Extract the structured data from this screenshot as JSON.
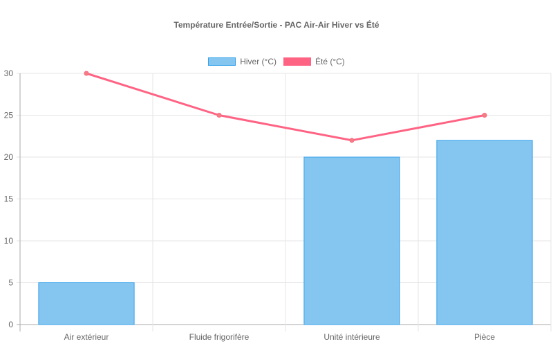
{
  "chart_data": {
    "type": "bar",
    "title": "Température Entrée/Sortie - PAC Air-Air Hiver vs Été",
    "categories": [
      "Air extérieur",
      "Fluide frigorifère",
      "Unité intérieure",
      "Pièce"
    ],
    "series": [
      {
        "name": "Hiver (°C)",
        "type": "bar",
        "values": [
          5,
          0,
          20,
          22
        ],
        "color": "#36a2eb",
        "fill": "#85c6f1"
      },
      {
        "name": "Été (°C)",
        "type": "line",
        "values": [
          30,
          25,
          22,
          25
        ],
        "color": "#ff6384",
        "point_color": "#f08080"
      }
    ],
    "xlabel": "",
    "ylabel": "",
    "ylim": [
      0,
      30
    ],
    "yticks": [
      0,
      5,
      10,
      15,
      20,
      25,
      30
    ],
    "grid": true,
    "legend_position": "top"
  }
}
